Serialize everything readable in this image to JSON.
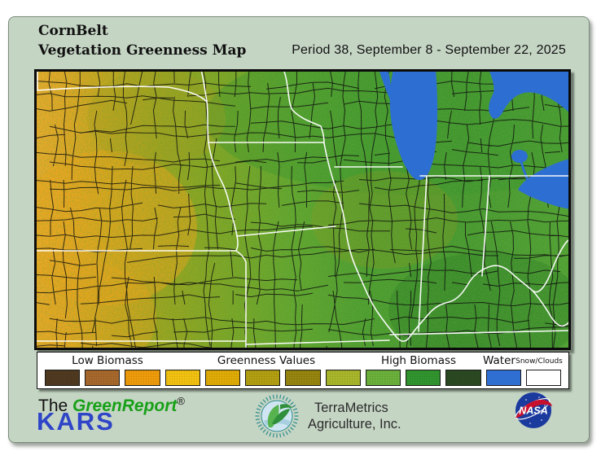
{
  "header": {
    "title_line1": "CornBelt",
    "title_line2": "Vegetation Greenness Map",
    "period": "Period 38, September 8 - September 22, 2025"
  },
  "map": {
    "description": "Satellite-derived vegetation greenness raster of the Corn Belt with black county boundaries, white state boundaries and blue Great Lakes",
    "water": "#2d6ed2",
    "county_line": "#0d0d0d",
    "state_line": "#ffffff",
    "frame": "#0b0b0b",
    "field": [
      {
        "c": "#eba92b"
      },
      {
        "c": "#e3a523"
      },
      {
        "c": "#c2a41d"
      },
      {
        "c": "#9da21e"
      },
      {
        "c": "#80a424"
      },
      {
        "c": "#60a42e"
      },
      {
        "c": "#4b9c30"
      },
      {
        "c": "#459730"
      },
      {
        "c": "#4fa034"
      }
    ]
  },
  "legend": {
    "low_label": "Low Biomass",
    "mid_label": "Greenness Values",
    "high_label": "High Biomass",
    "water_label": "Water",
    "snow_label": "Snow/Clouds",
    "swatches": [
      {
        "name": "biomass-1-darkest-brown",
        "color": "#503a20"
      },
      {
        "name": "biomass-2-brown",
        "color": "#a8692c"
      },
      {
        "name": "biomass-3-orange",
        "color": "#f19d0b"
      },
      {
        "name": "biomass-4-gold",
        "color": "#f4c411"
      },
      {
        "name": "biomass-5-amber",
        "color": "#e2ad06"
      },
      {
        "name": "biomass-6-olive-yellow",
        "color": "#b4a011"
      },
      {
        "name": "biomass-7-olive",
        "color": "#97860f"
      },
      {
        "name": "biomass-8-yellow-green",
        "color": "#aab82b"
      },
      {
        "name": "biomass-9-light-green",
        "color": "#6cb23c"
      },
      {
        "name": "biomass-10-green",
        "color": "#31962f"
      },
      {
        "name": "biomass-11-dark-green",
        "color": "#2b4a22"
      },
      {
        "name": "water",
        "color": "#306fd2"
      },
      {
        "name": "snow-clouds",
        "color": "#ffffff"
      }
    ]
  },
  "footer": {
    "greenreport": {
      "the": "The ",
      "name": "GreenReport",
      "reg": "®",
      "green_color": "#18a018"
    },
    "kars": {
      "label": "KARS",
      "color": "#2f45c8"
    },
    "terrametrics": {
      "line1": "TerraMetrics",
      "line2": "Agriculture, Inc.",
      "teal": "#2e8b8b"
    },
    "nasa": {
      "label": "NASA",
      "ball_color": "#1b3a9e",
      "swoosh_color": "#c8102e"
    }
  }
}
